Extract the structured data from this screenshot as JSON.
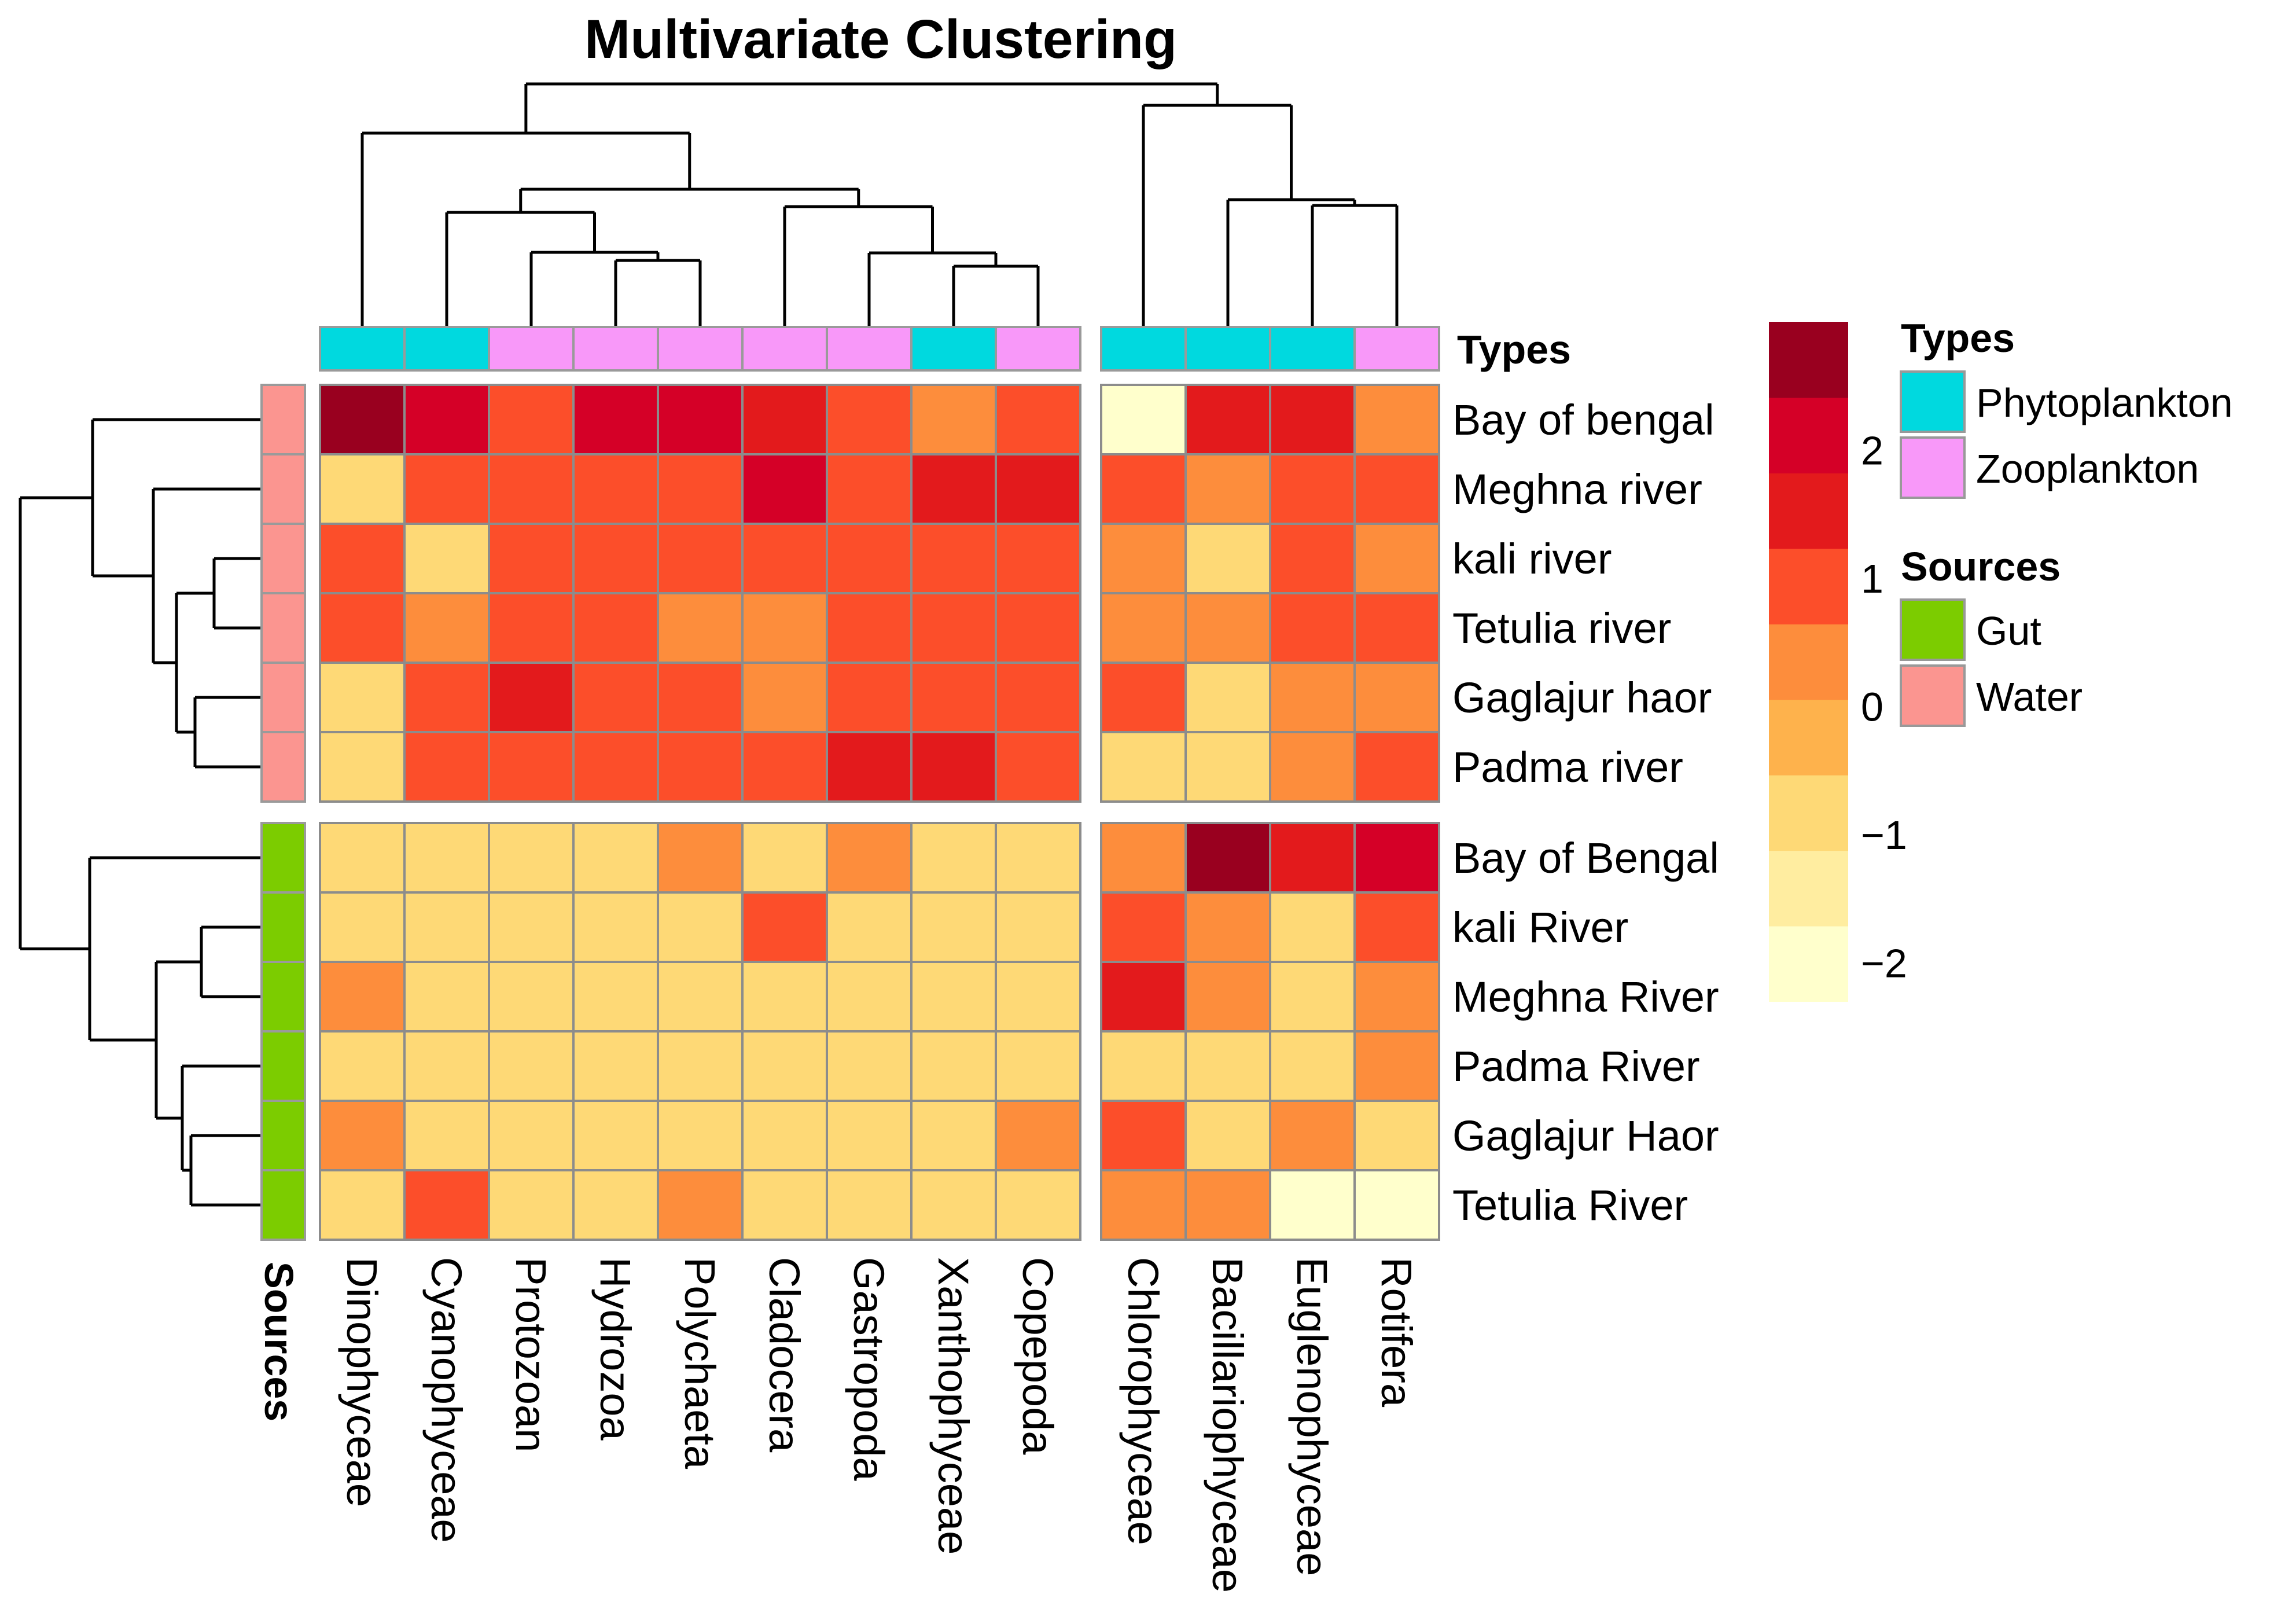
{
  "chart_data": {
    "type": "heatmap",
    "title": "Multivariate Clustering",
    "columns": [
      "Dinophyceae",
      "Cyanophyceae",
      "Protozoan",
      "Hydrozoa",
      "Polychaeta",
      "Cladocera",
      "Gastropoda",
      "Xanthophyceae",
      "Copepoda",
      "Chlorophyceae",
      "Bacillariophyceae",
      "Euglenophyceae",
      "Rotifera"
    ],
    "column_types": [
      "Phytoplankton",
      "Phytoplankton",
      "Zooplankton",
      "Zooplankton",
      "Zooplankton",
      "Zooplankton",
      "Zooplankton",
      "Phytoplankton",
      "Zooplankton",
      "Phytoplankton",
      "Phytoplankton",
      "Phytoplankton",
      "Zooplankton"
    ],
    "rows": [
      "Bay of bengal",
      "Meghna river",
      "kali river",
      "Tetulia river",
      "Gaglajur haor",
      "Padma river",
      "Bay of Bengal",
      "kali River",
      "Meghna River",
      "Padma River",
      "Gaglajur Haor",
      "Tetulia River"
    ],
    "row_sources": [
      "Water",
      "Water",
      "Water",
      "Water",
      "Water",
      "Water",
      "Gut",
      "Gut",
      "Gut",
      "Gut",
      "Gut",
      "Gut"
    ],
    "values": [
      [
        3.0,
        2.2,
        1.2,
        2.2,
        2.2,
        1.7,
        0.7,
        0.2,
        0.7,
        -2.0,
        1.7,
        1.7,
        0.2
      ],
      [
        -0.6,
        1.2,
        0.7,
        0.7,
        1.2,
        2.2,
        1.2,
        1.7,
        1.7,
        1.2,
        0.2,
        1.2,
        0.7
      ],
      [
        0.7,
        -1.0,
        0.7,
        1.2,
        0.7,
        0.7,
        1.2,
        0.7,
        0.7,
        0.2,
        -0.6,
        0.7,
        0.2
      ],
      [
        0.7,
        0.2,
        1.2,
        0.7,
        0.2,
        0.2,
        0.7,
        1.2,
        1.2,
        0.2,
        0.2,
        0.7,
        0.7
      ],
      [
        -0.6,
        0.7,
        1.7,
        0.7,
        1.2,
        0.2,
        0.7,
        1.2,
        1.2,
        0.7,
        -0.6,
        0.2,
        0.2
      ],
      [
        -0.6,
        1.2,
        0.7,
        0.7,
        0.7,
        0.7,
        1.7,
        1.7,
        1.2,
        -0.6,
        -0.6,
        0.2,
        0.7
      ],
      [
        -0.6,
        -0.6,
        -0.6,
        -0.6,
        0.2,
        -1.0,
        0.2,
        -1.0,
        -0.6,
        0.2,
        3.0,
        1.7,
        2.2
      ],
      [
        -0.6,
        -0.6,
        -0.6,
        -0.6,
        -0.6,
        0.7,
        -0.6,
        -0.6,
        -1.0,
        0.7,
        0.2,
        -1.0,
        0.7
      ],
      [
        0.2,
        -1.0,
        -0.6,
        -1.0,
        -1.0,
        -0.6,
        -1.0,
        -1.0,
        -0.6,
        1.7,
        0.2,
        -0.6,
        0.2
      ],
      [
        -0.6,
        -1.0,
        -1.0,
        -1.0,
        -1.0,
        -0.6,
        -1.0,
        -0.6,
        -1.0,
        -1.0,
        -0.6,
        -1.0,
        0.2
      ],
      [
        0.2,
        -0.6,
        -1.0,
        -0.6,
        -1.0,
        -1.0,
        -0.6,
        -0.6,
        0.2,
        0.7,
        -0.6,
        0.2,
        -1.0
      ],
      [
        -0.6,
        0.7,
        -0.6,
        -1.0,
        0.2,
        -1.0,
        -1.0,
        -0.6,
        -1.0,
        0.2,
        0.2,
        -2.0,
        -2.0
      ]
    ],
    "color_scale": {
      "min": -2.3,
      "max": 3.0,
      "colors": [
        "#ffffcc",
        "#ffeda0",
        "#fed976",
        "#feb24c",
        "#fd8d3c",
        "#fc4e2a",
        "#e31a1c",
        "#d50027",
        "#99001f"
      ],
      "ticks": [
        2,
        1,
        0,
        -1,
        -2
      ],
      "tick_labels": [
        "2",
        "1",
        "0",
        "−1",
        "−2"
      ]
    },
    "annotations": {
      "col_title": "Types",
      "row_title": "Sources",
      "types_legend_title": "Types",
      "types": [
        {
          "label": "Phytoplankton",
          "color": "#00d9df"
        },
        {
          "label": "Zooplankton",
          "color": "#f898f9"
        }
      ],
      "sources_legend_title": "Sources",
      "sources": [
        {
          "label": "Gut",
          "color": "#7ccc00"
        },
        {
          "label": "Water",
          "color": "#fb9590"
        }
      ]
    },
    "column_split_after": 9,
    "row_split_after": 6
  },
  "colors": {
    "cell_border": "#8c8c8c",
    "panel_border": "#9a9a9a"
  }
}
